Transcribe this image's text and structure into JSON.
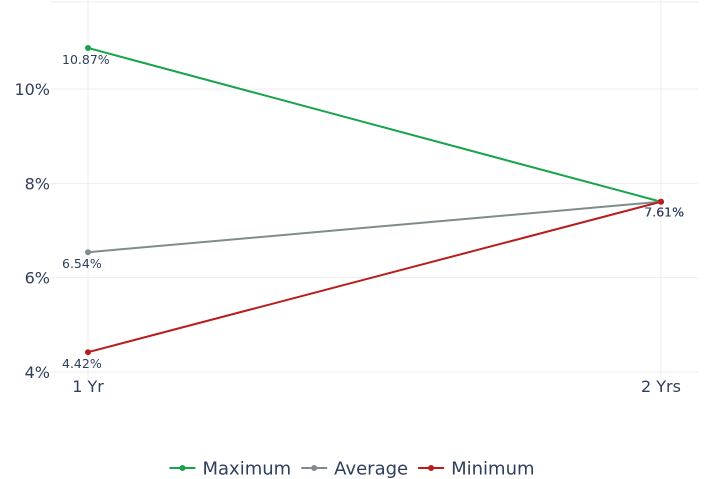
{
  "chart_data": {
    "type": "line",
    "x": [
      "1 Yr",
      "2 Yrs"
    ],
    "y_ticks": [
      "4%",
      "6%",
      "8%",
      "10%"
    ],
    "ylim": [
      4,
      11.5
    ],
    "grid": true,
    "legend_position": "bottom",
    "series": [
      {
        "name": "Maximum",
        "color": "#16a34a",
        "values": [
          10.87,
          7.61
        ],
        "labels": [
          "10.87%",
          "7.61%"
        ]
      },
      {
        "name": "Average",
        "color": "#7f8c8d",
        "values": [
          6.54,
          7.61
        ],
        "labels": [
          "6.54%",
          "7.61%"
        ]
      },
      {
        "name": "Minimum",
        "color": "#b91c1c",
        "values": [
          4.42,
          7.61
        ],
        "labels": [
          "4.42%",
          "7.61%"
        ]
      }
    ]
  }
}
